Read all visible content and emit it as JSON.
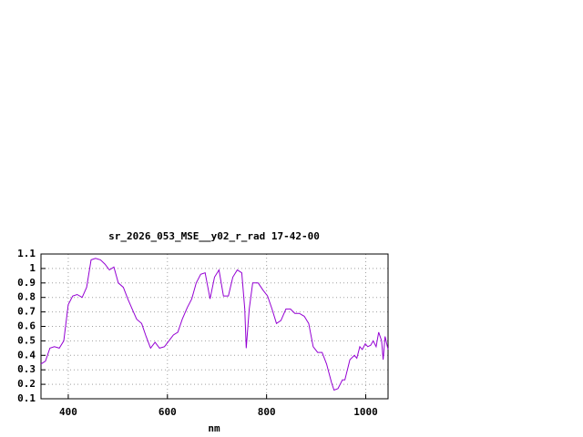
{
  "chart_data": {
    "type": "line",
    "title": "sr_2026_053_MSE__y02_r_rad 17-42-00",
    "xlabel": "nm",
    "series": [
      {
        "color": "#9400d3",
        "x": [
          345,
          354,
          363,
          372,
          382,
          391,
          400,
          409,
          418,
          428,
          437,
          446,
          455,
          465,
          474,
          483,
          492,
          501,
          511,
          520,
          529,
          538,
          548,
          557,
          566,
          575,
          584,
          594,
          603,
          612,
          621,
          630,
          640,
          649,
          658,
          667,
          676,
          686,
          695,
          704,
          713,
          723,
          732,
          741,
          750,
          756,
          759,
          765,
          772,
          783,
          793,
          802,
          811,
          820,
          829,
          839,
          848,
          857,
          866,
          876,
          885,
          894,
          903,
          912,
          921,
          931,
          936,
          944,
          953,
          958,
          968,
          977,
          982,
          988,
          993,
          999,
          1004,
          1010,
          1015,
          1021,
          1026,
          1032,
          1035,
          1039,
          1045
        ],
        "values": [
          0.34,
          0.36,
          0.45,
          0.46,
          0.45,
          0.5,
          0.75,
          0.81,
          0.82,
          0.8,
          0.87,
          1.06,
          1.07,
          1.06,
          1.03,
          0.99,
          1.01,
          0.9,
          0.87,
          0.79,
          0.72,
          0.65,
          0.62,
          0.53,
          0.45,
          0.49,
          0.45,
          0.46,
          0.5,
          0.54,
          0.56,
          0.65,
          0.73,
          0.79,
          0.9,
          0.96,
          0.97,
          0.79,
          0.94,
          0.99,
          0.81,
          0.81,
          0.94,
          0.99,
          0.97,
          0.72,
          0.45,
          0.72,
          0.9,
          0.9,
          0.85,
          0.81,
          0.72,
          0.62,
          0.64,
          0.72,
          0.72,
          0.69,
          0.69,
          0.67,
          0.62,
          0.46,
          0.42,
          0.42,
          0.34,
          0.21,
          0.16,
          0.17,
          0.23,
          0.23,
          0.37,
          0.4,
          0.38,
          0.46,
          0.44,
          0.48,
          0.46,
          0.47,
          0.5,
          0.46,
          0.56,
          0.5,
          0.37,
          0.53,
          0.44
        ]
      }
    ],
    "xlim": [
      345,
      1045
    ],
    "xticks": [
      400,
      600,
      800,
      1000
    ],
    "ylim": [
      0.1,
      1.1
    ],
    "yticks": [
      0.1,
      0.2,
      0.3,
      0.4,
      0.5,
      0.6,
      0.7,
      0.8,
      0.9,
      1,
      1.1
    ],
    "grid": true
  }
}
